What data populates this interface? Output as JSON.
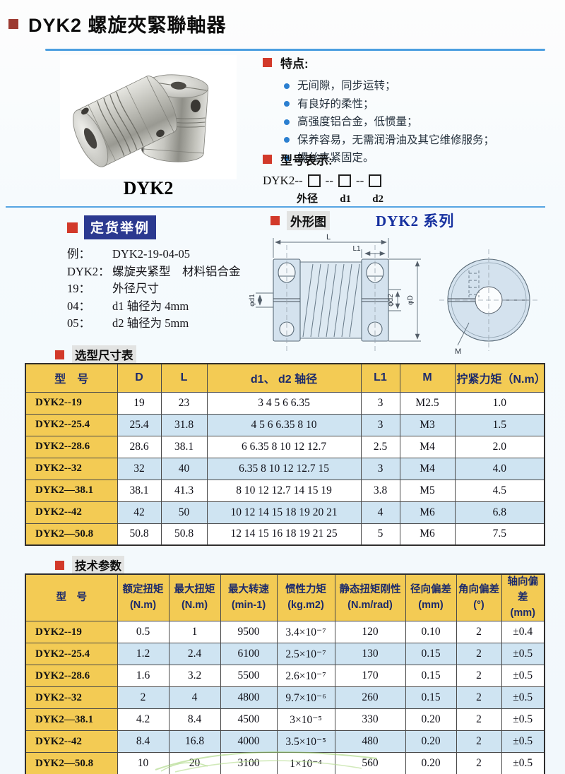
{
  "page": {
    "title": "DYK2 螺旋夾緊聯軸器",
    "product_label": "DYK2"
  },
  "features": {
    "heading": "特点:",
    "items": [
      "无间隙，同步运转；",
      "有良好的柔性；",
      "高强度铝合金，低惯量；",
      "保养容易，无需润滑油及其它维修服务；",
      "螺丝夹紧固定。"
    ]
  },
  "model_code": {
    "heading": "型号表示:",
    "prefix": "DYK2--",
    "separator": "--",
    "labels": [
      "外径",
      "d1",
      "d2"
    ]
  },
  "ordering": {
    "heading": "定货举例",
    "lines": [
      {
        "k": "例：",
        "v": "DYK2-19-04-05"
      },
      {
        "k": "DYK2：",
        "v": "螺旋夹紧型　材料铝合金"
      },
      {
        "k": "19：",
        "v": "外径尺寸"
      },
      {
        "k": "04：",
        "v": "d1 轴径为 4mm"
      },
      {
        "k": "05：",
        "v": "d2 轴径为 5mm"
      }
    ]
  },
  "outline": {
    "heading": "外形图",
    "series": "DYK2 系列",
    "dims": {
      "L": "L",
      "L1": "L1",
      "d1": "φd1",
      "d2": "φd2",
      "D": "φD",
      "M": "M"
    }
  },
  "table1": {
    "heading": "选型尺寸表",
    "columns": [
      "型　号",
      "D",
      "L",
      "d1、 d2 轴径",
      "L1",
      "M",
      "拧紧力矩（N.m）"
    ],
    "rows": [
      [
        "DYK2--19",
        "19",
        "23",
        "3 4 5 6 6.35",
        "3",
        "M2.5",
        "1.0"
      ],
      [
        "DYK2--25.4",
        "25.4",
        "31.8",
        "4 5 6 6.35 8 10",
        "3",
        "M3",
        "1.5"
      ],
      [
        "DYK2--28.6",
        "28.6",
        "38.1",
        "6 6.35 8 10 12 12.7",
        "2.5",
        "M4",
        "2.0"
      ],
      [
        "DYK2--32",
        "32",
        "40",
        "6.35 8 10 12 12.7 15",
        "3",
        "M4",
        "4.0"
      ],
      [
        "DYK2—38.1",
        "38.1",
        "41.3",
        "8 10 12 12.7 14 15 19",
        "3.8",
        "M5",
        "4.5"
      ],
      [
        "DYK2--42",
        "42",
        "50",
        "10 12 14 15 18 19 20 21",
        "4",
        "M6",
        "6.8"
      ],
      [
        "DYK2—50.8",
        "50.8",
        "50.8",
        "12 14 15 16 18 19 21 25",
        "5",
        "M6",
        "7.5"
      ]
    ]
  },
  "table2": {
    "heading": "技术参数",
    "columns": [
      [
        "型　号",
        ""
      ],
      [
        "额定扭矩",
        "(N.m)"
      ],
      [
        "最大扭矩",
        "(N.m)"
      ],
      [
        "最大转速",
        "(min-1)"
      ],
      [
        "惯性力矩",
        "(kg.m2)"
      ],
      [
        "静态扭矩刚性",
        "(N.m/rad)"
      ],
      [
        "径向偏差",
        "(mm)"
      ],
      [
        "角向偏差",
        "(°)"
      ],
      [
        "轴向偏差",
        "(mm)"
      ]
    ],
    "rows": [
      [
        "DYK2--19",
        "0.5",
        "1",
        "9500",
        "3.4×10⁻⁷",
        "120",
        "0.10",
        "2",
        "±0.4"
      ],
      [
        "DYK2--25.4",
        "1.2",
        "2.4",
        "6100",
        "2.5×10⁻⁷",
        "130",
        "0.15",
        "2",
        "±0.5"
      ],
      [
        "DYK2--28.6",
        "1.6",
        "3.2",
        "5500",
        "2.6×10⁻⁷",
        "170",
        "0.15",
        "2",
        "±0.5"
      ],
      [
        "DYK2--32",
        "2",
        "4",
        "4800",
        "9.7×10⁻⁶",
        "260",
        "0.15",
        "2",
        "±0.5"
      ],
      [
        "DYK2—38.1",
        "4.2",
        "8.4",
        "4500",
        "3×10⁻⁵",
        "330",
        "0.20",
        "2",
        "±0.5"
      ],
      [
        "DYK2--42",
        "8.4",
        "16.8",
        "4000",
        "3.5×10⁻⁵",
        "480",
        "0.20",
        "2",
        "±0.5"
      ],
      [
        "DYK2—50.8",
        "10",
        "20",
        "3100",
        "1×10⁻⁴",
        "560",
        "0.20",
        "2",
        "±0.5"
      ]
    ]
  }
}
